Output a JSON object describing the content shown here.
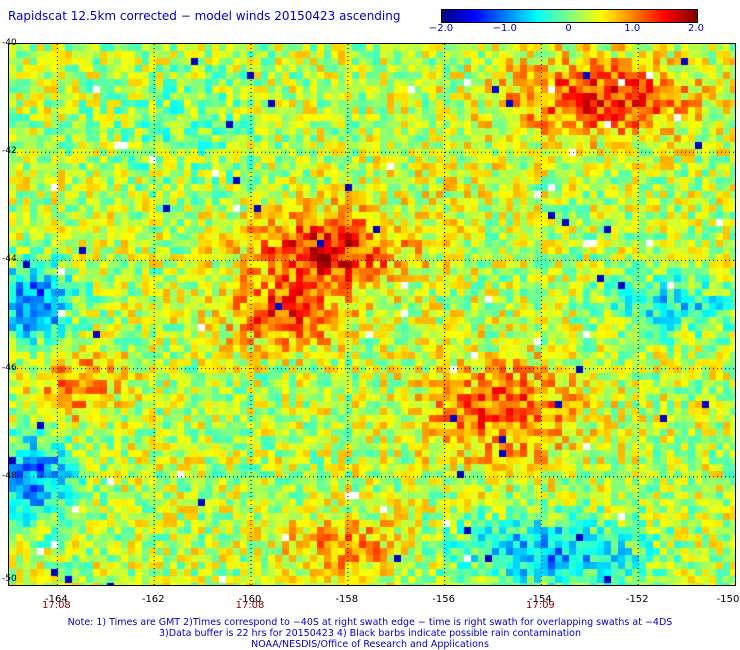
{
  "title": "Rapidscat 12.5km corrected − model winds 20150423 ascending",
  "colorbar": {
    "min": -2.0,
    "max": 2.0,
    "colors": [
      "#000080",
      "#0000ff",
      "#0080ff",
      "#00ffff",
      "#80ff80",
      "#ffff00",
      "#ff8000",
      "#ff0000",
      "#800000"
    ],
    "tick_labels": [
      "−2.0",
      "−1.0",
      "0",
      "1.0",
      "2.0"
    ],
    "tick_values": [
      -2.0,
      -1.0,
      0,
      1.0,
      2.0
    ]
  },
  "map": {
    "lon_range": [
      -165,
      -150
    ],
    "lat_range": [
      -50,
      -40
    ],
    "lat_ticks": [
      "-40",
      "-42",
      "-44",
      "-46",
      "-48",
      "-50"
    ],
    "lat_tick_values": [
      -40,
      -42,
      -44,
      -46,
      -48,
      -50
    ],
    "lon_ticks": [
      "-164",
      "-162",
      "-160",
      "-158",
      "-156",
      "-154",
      "-152",
      "-150"
    ],
    "lon_tick_values": [
      -164,
      -162,
      -160,
      -158,
      -156,
      -154,
      -152,
      -150
    ],
    "time_labels": [
      {
        "text": "17:08",
        "lon": -164
      },
      {
        "text": "17:08",
        "lon": -160
      },
      {
        "text": "17:09",
        "lon": -154
      }
    ],
    "gridlines": "dotted"
  },
  "notes": {
    "line1": "Note: 1) Times are GMT 2)Times correspond to −40S at right swath edge − time is right swath for overlapping swaths at −4DS",
    "line2": "3)Data buffer is 22 hrs for 20150423 4) Black barbs indicate possible rain contamination",
    "line3": "NOAA/NESDIS/Office of Research and Applications"
  }
}
